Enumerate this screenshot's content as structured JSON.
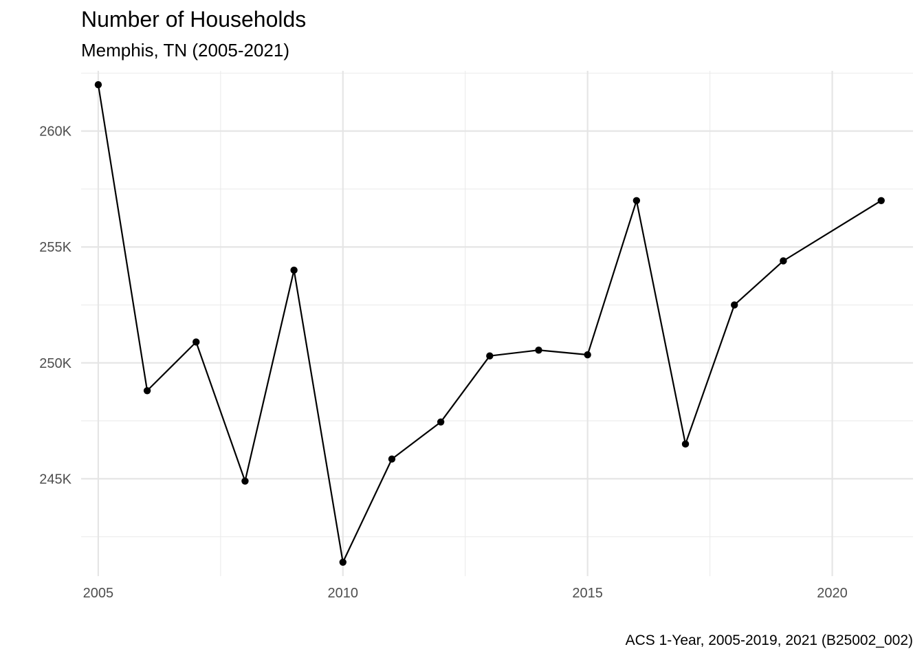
{
  "chart_data": {
    "type": "line",
    "title": "Number of Households",
    "subtitle": "Memphis, TN (2005-2021)",
    "caption": "ACS 1-Year, 2005-2019, 2021 (B25002_002)",
    "xlabel": "",
    "ylabel": "",
    "xlim": [
      2004.65,
      2021.65
    ],
    "ylim": [
      240800,
      262600
    ],
    "x_ticks": [
      2005,
      2010,
      2015,
      2020
    ],
    "x_minor_ticks": [
      2007.5,
      2012.5,
      2017.5
    ],
    "y_ticks": [
      245000,
      250000,
      255000,
      260000
    ],
    "y_tick_labels": [
      "245K",
      "250K",
      "255K",
      "260K"
    ],
    "y_minor_ticks": [
      242500,
      247500,
      252500,
      257500,
      262500
    ],
    "grid": true,
    "legend": "none",
    "series": [
      {
        "color": "#000000",
        "points": [
          {
            "x": 2005,
            "y": 262000
          },
          {
            "x": 2006,
            "y": 248800
          },
          {
            "x": 2007,
            "y": 250900
          },
          {
            "x": 2008,
            "y": 244900
          },
          {
            "x": 2009,
            "y": 254000
          },
          {
            "x": 2010,
            "y": 241400
          },
          {
            "x": 2011,
            "y": 245850
          },
          {
            "x": 2012,
            "y": 247450
          },
          {
            "x": 2013,
            "y": 250300
          },
          {
            "x": 2014,
            "y": 250550
          },
          {
            "x": 2015,
            "y": 250350
          },
          {
            "x": 2016,
            "y": 257000
          },
          {
            "x": 2017,
            "y": 246500
          },
          {
            "x": 2018,
            "y": 252500
          },
          {
            "x": 2019,
            "y": 254400
          },
          {
            "x": 2021,
            "y": 257000
          }
        ]
      }
    ]
  }
}
